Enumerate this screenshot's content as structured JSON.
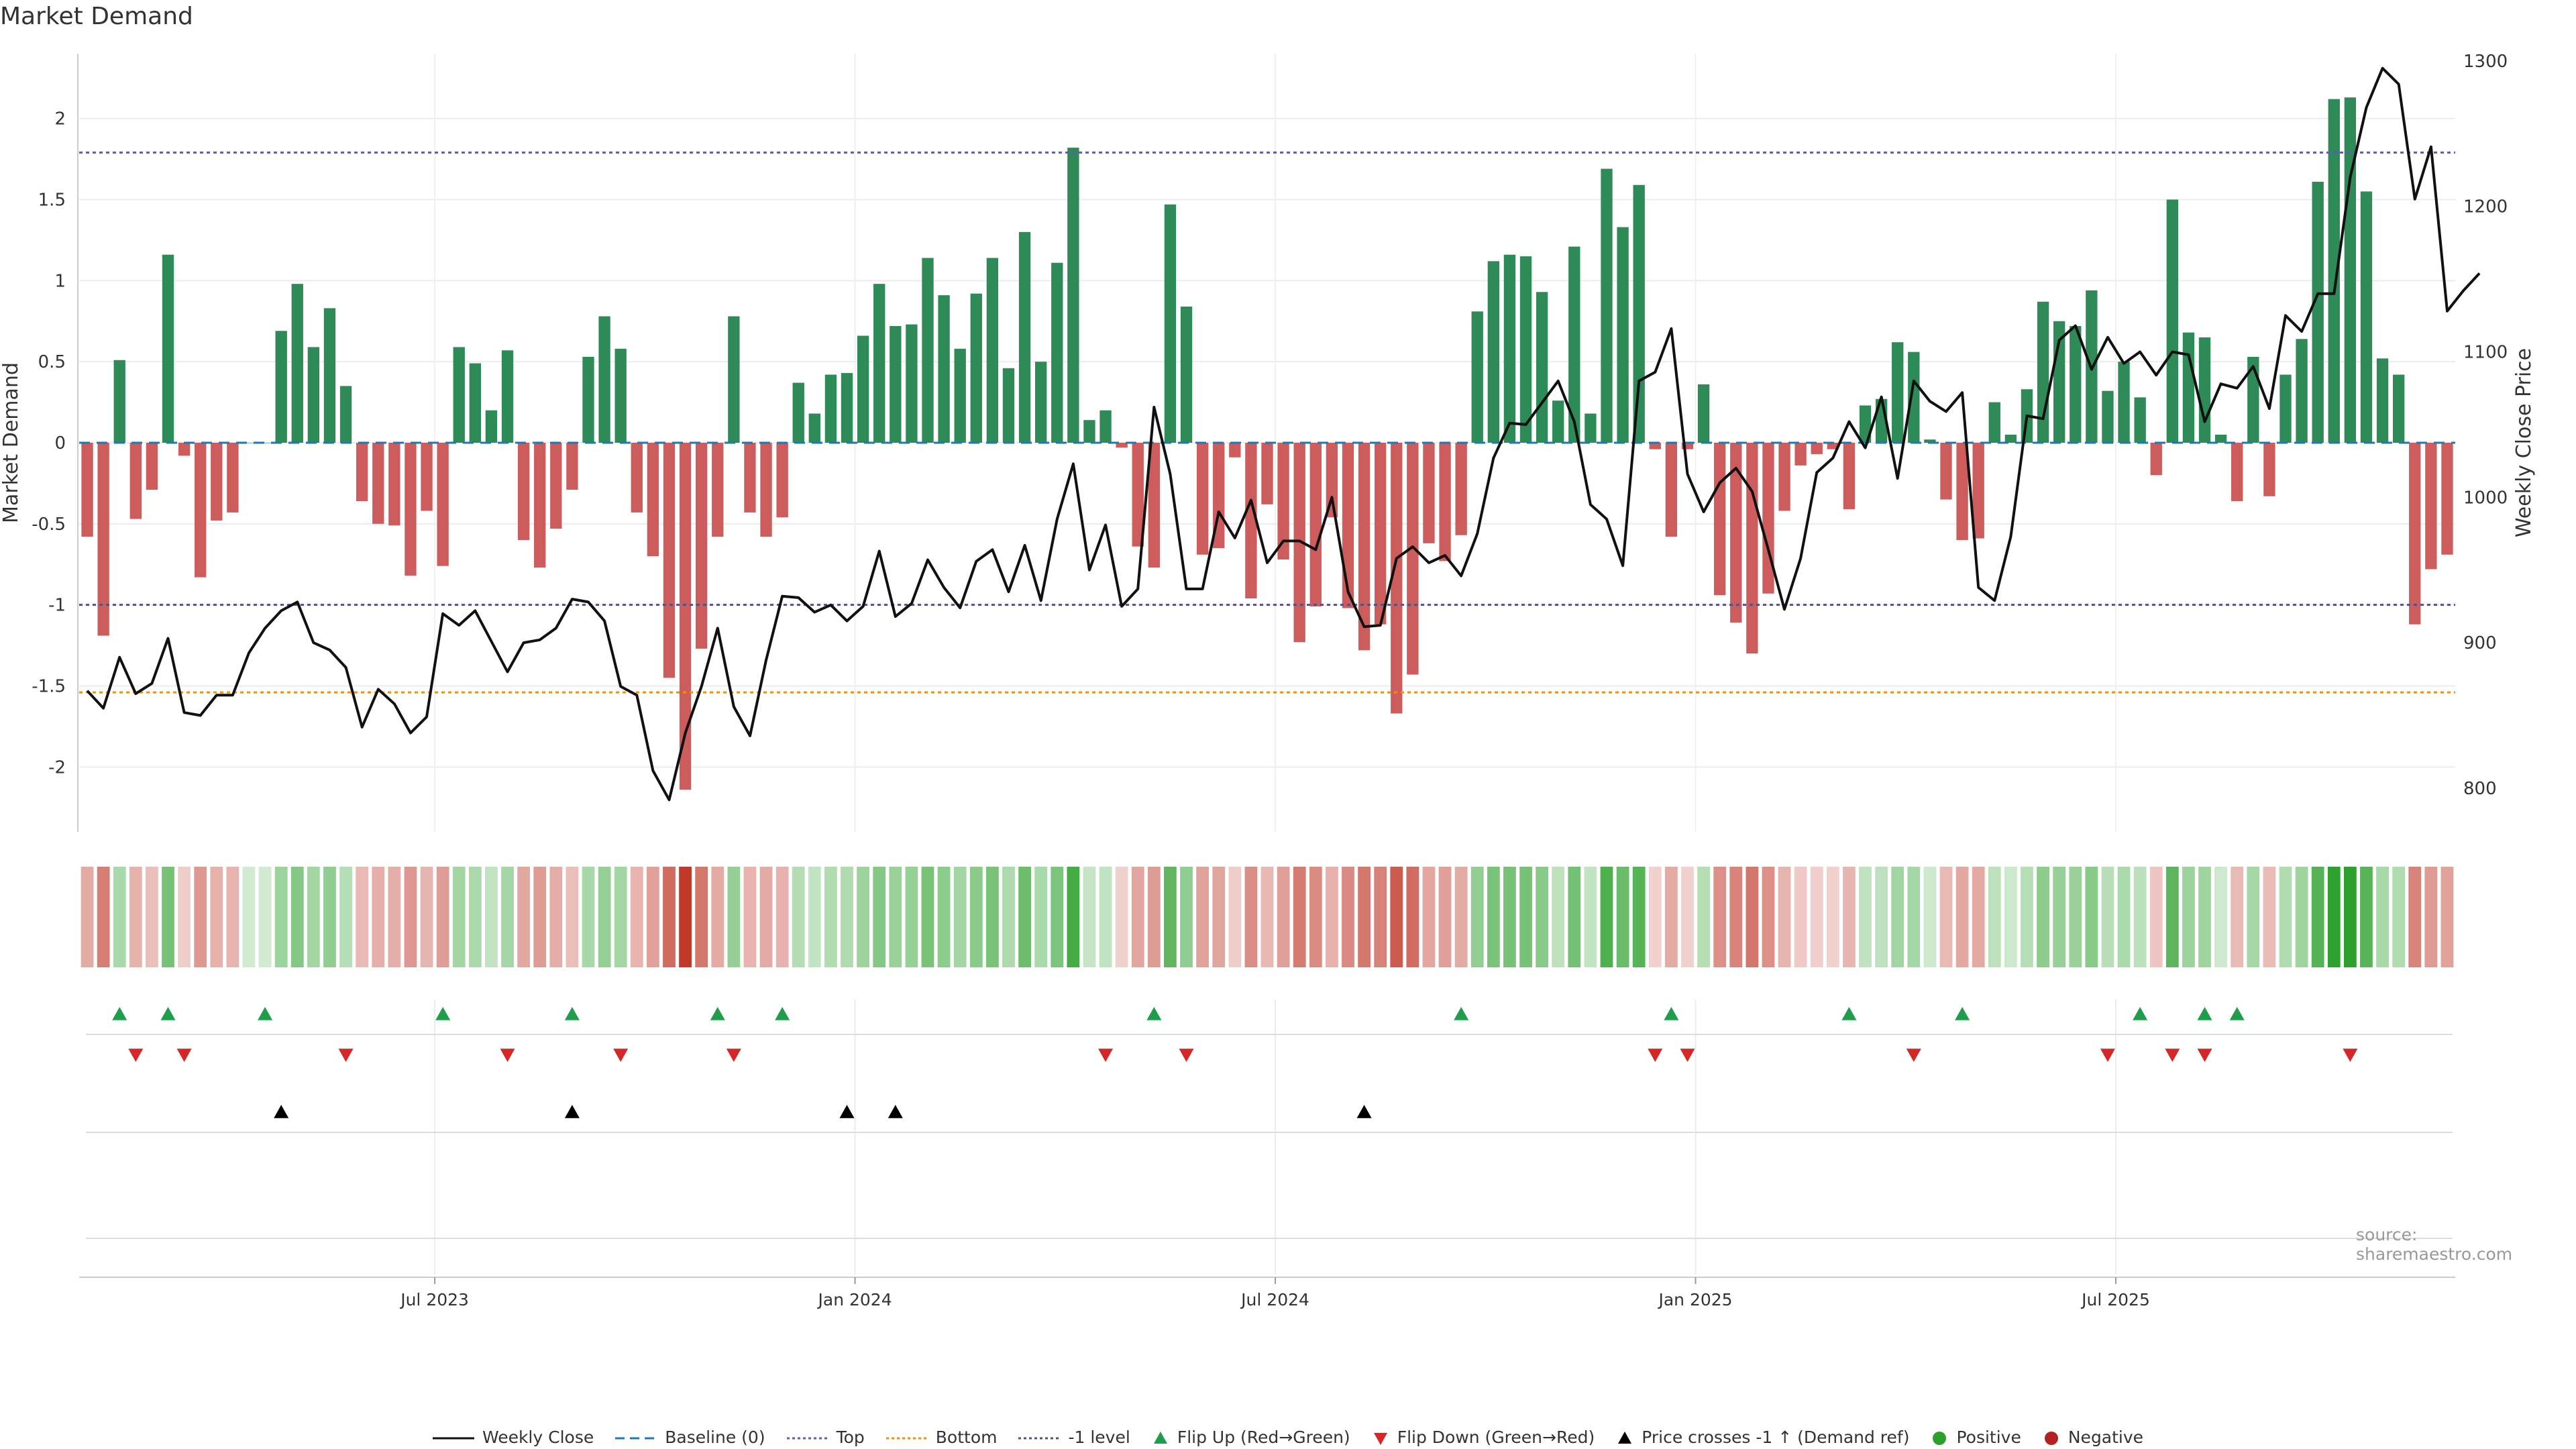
{
  "chart_data": {
    "type": "bar",
    "title": "Market Demand",
    "ylabel": "Market Demand",
    "y2label": "Weekly Close Price",
    "ylim": [
      -2.4,
      2.4
    ],
    "y2lim": [
      770,
      1305
    ],
    "yticks": [
      "2",
      "1.5",
      "1",
      "0.5",
      "0",
      "-0.5",
      "-1",
      "-1.5",
      "-2"
    ],
    "ytick_values": [
      2,
      1.5,
      1,
      0.5,
      0,
      -0.5,
      -1,
      -1.5,
      -2
    ],
    "y2ticks": [
      800,
      900,
      1000,
      1100,
      1200,
      1300
    ],
    "x_axis_labels": [
      {
        "label": "Jul 2023",
        "week": 22
      },
      {
        "label": "Jan 2024",
        "week": 48
      },
      {
        "label": "Jul 2024",
        "week": 74
      },
      {
        "label": "Jan 2025",
        "week": 100
      },
      {
        "label": "Jul 2025",
        "week": 126
      }
    ],
    "reference_lines": {
      "baseline": 0,
      "top": 1.79,
      "bottom": -1.54,
      "minus_one": -1
    },
    "demand": [
      -0.58,
      -1.19,
      0.51,
      -0.47,
      -0.29,
      1.16,
      -0.08,
      -0.83,
      -0.48,
      -0.43,
      0,
      0.0,
      0.69,
      0.98,
      0.59,
      0.83,
      0.35,
      -0.36,
      -0.5,
      -0.51,
      -0.82,
      -0.42,
      -0.76,
      0.59,
      0.49,
      0.2,
      0.57,
      -0.6,
      -0.77,
      -0.53,
      -0.29,
      0.53,
      0.78,
      0.58,
      -0.43,
      -0.7,
      -1.45,
      -2.14,
      -1.27,
      -0.58,
      0.78,
      -0.43,
      -0.58,
      -0.46,
      0.37,
      0.18,
      0.42,
      0.43,
      0.66,
      0.98,
      0.72,
      0.73,
      1.14,
      0.91,
      0.58,
      0.92,
      1.14,
      0.46,
      1.3,
      0.5,
      1.11,
      1.82,
      0.14,
      0.2,
      -0.03,
      -0.64,
      -0.77,
      1.47,
      0.84,
      -0.69,
      -0.65,
      -0.09,
      -0.96,
      -0.38,
      -0.72,
      -1.23,
      -1.01,
      -0.46,
      -1.02,
      -1.28,
      -1.12,
      -1.67,
      -1.43,
      -0.62,
      -0.73,
      -0.57,
      0.81,
      1.12,
      1.16,
      1.15,
      0.93,
      0.26,
      1.21,
      0.18,
      1.69,
      1.33,
      1.59,
      -0.04,
      -0.58,
      -0.04,
      0.36,
      -0.94,
      -1.11,
      -1.3,
      -0.93,
      -0.42,
      -0.14,
      -0.07,
      -0.04,
      -0.41,
      0.23,
      0.27,
      0.62,
      0.56,
      0.02,
      -0.35,
      -0.6,
      -0.59,
      0.25,
      0.05,
      0.33,
      0.87,
      0.75,
      0.72,
      0.94,
      0.32,
      0.5,
      0.28,
      -0.2,
      1.5,
      0.68,
      0.65,
      0.05,
      -0.36,
      0.53,
      -0.33,
      0.42,
      0.64,
      1.61,
      2.12,
      2.13,
      1.55,
      0.52,
      0.42,
      -1.12,
      -0.78,
      -0.69
    ],
    "close": [
      867,
      855,
      890,
      865,
      872,
      903,
      852,
      850,
      864,
      864,
      893,
      910,
      922,
      928,
      900,
      895,
      883,
      842,
      868,
      858,
      838,
      849,
      920,
      912,
      922,
      901,
      880,
      900,
      902,
      910,
      930,
      928,
      915,
      870,
      864,
      812,
      792,
      838,
      870,
      910,
      856,
      836,
      888,
      932,
      931,
      921,
      926,
      915,
      925,
      963,
      918,
      927,
      957,
      938,
      924,
      956,
      964,
      935,
      967,
      929,
      985,
      1023,
      950,
      981,
      925,
      937,
      1062,
      1016,
      937,
      937,
      990,
      972,
      998,
      955,
      970,
      970,
      964,
      1000,
      935,
      911,
      912,
      958,
      966,
      955,
      960,
      946,
      975,
      1027,
      1051,
      1050,
      1065,
      1080,
      1052,
      995,
      985,
      953,
      1080,
      1086,
      1116,
      1016,
      990,
      1010,
      1020,
      1004,
      964,
      923,
      958,
      1017,
      1027,
      1052,
      1034,
      1069,
      1013,
      1080,
      1066,
      1059,
      1072,
      938,
      929,
      973,
      1056,
      1054,
      1108,
      1118,
      1088,
      1110,
      1092,
      1100,
      1084,
      1100,
      1098,
      1052,
      1078,
      1075,
      1090,
      1061,
      1125,
      1114,
      1140,
      1140,
      1220,
      1268,
      1295,
      1284,
      1205,
      1241,
      1128,
      1142,
      1154
    ]
  },
  "marker_rows": {
    "flip_up_weeks": [
      2,
      5,
      11,
      22,
      30,
      39,
      43,
      66,
      85,
      98,
      109,
      116,
      127,
      131,
      133
    ],
    "flip_down_weeks": [
      3,
      6,
      16,
      26,
      33,
      40,
      63,
      68,
      97,
      99,
      113,
      125,
      129,
      131,
      140
    ],
    "price_cross_weeks": [
      12,
      30,
      47,
      50,
      79
    ]
  },
  "colors": {
    "positive": "#2e8b57",
    "negative": "#cd5c5c",
    "price_line": "#111111",
    "baseline": "#1f77b4",
    "top_line": "#5d5db0",
    "bottom_line": "#ff8c00",
    "minus_one_line": "#5a4f7a",
    "flip_up": "#1e9e4a",
    "flip_down": "#d62728",
    "cross": "#000000",
    "positive_dot": "#2ca02c",
    "negative_dot": "#b22222"
  },
  "legend": [
    {
      "label": "Weekly Close",
      "kind": "line",
      "style": "solid",
      "color_key": "price_line"
    },
    {
      "label": "Baseline (0)",
      "kind": "line",
      "style": "dashed",
      "color_key": "baseline"
    },
    {
      "label": "Top",
      "kind": "line",
      "style": "dotted",
      "color_key": "top_line"
    },
    {
      "label": "Bottom",
      "kind": "line",
      "style": "dotted",
      "color_key": "bottom_line"
    },
    {
      "label": "-1 level",
      "kind": "line",
      "style": "dotted",
      "color_key": "minus_one_line"
    },
    {
      "label": "Flip Up (Red→Green)",
      "kind": "tri-up",
      "color_key": "flip_up"
    },
    {
      "label": "Flip Down (Green→Red)",
      "kind": "tri-down",
      "color_key": "flip_down"
    },
    {
      "label": "Price crosses -1 ↑ (Demand ref)",
      "kind": "tri-up",
      "color_key": "cross"
    },
    {
      "label": "Positive",
      "kind": "dot",
      "color_key": "positive_dot"
    },
    {
      "label": "Negative",
      "kind": "dot",
      "color_key": "negative_dot"
    }
  ],
  "title": "Market Demand",
  "source": "source: sharemaestro.com"
}
